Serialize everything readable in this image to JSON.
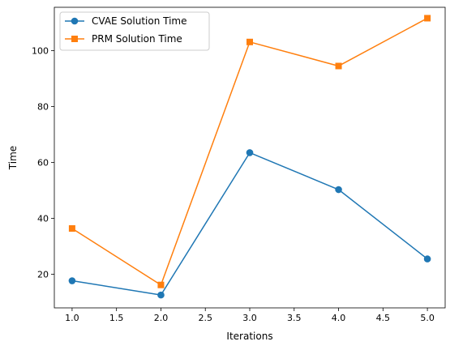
{
  "chart_data": {
    "type": "line",
    "title": "",
    "xlabel": "Iterations",
    "ylabel": "Time",
    "x": [
      1,
      2,
      3,
      4,
      5
    ],
    "xlim": [
      0.8,
      5.2
    ],
    "ylim": [
      8.0,
      115.5
    ],
    "xticks": [
      1.0,
      1.5,
      2.0,
      2.5,
      3.0,
      3.5,
      4.0,
      4.5,
      5.0
    ],
    "xtick_labels": [
      "1.0",
      "1.5",
      "2.0",
      "2.5",
      "3.0",
      "3.5",
      "4.0",
      "4.5",
      "5.0"
    ],
    "yticks": [
      20,
      40,
      60,
      80,
      100
    ],
    "ytick_labels": [
      "20",
      "40",
      "60",
      "80",
      "100"
    ],
    "grid": false,
    "legend_position": "top-left",
    "series": [
      {
        "name": "CVAE Solution Time",
        "values": [
          17.7,
          12.6,
          63.5,
          50.3,
          25.5
        ],
        "color": "#1f77b4",
        "marker": "circle"
      },
      {
        "name": "PRM Solution Time",
        "values": [
          36.4,
          16.2,
          103.1,
          94.5,
          111.6
        ],
        "color": "#ff7f0e",
        "marker": "square"
      }
    ]
  }
}
